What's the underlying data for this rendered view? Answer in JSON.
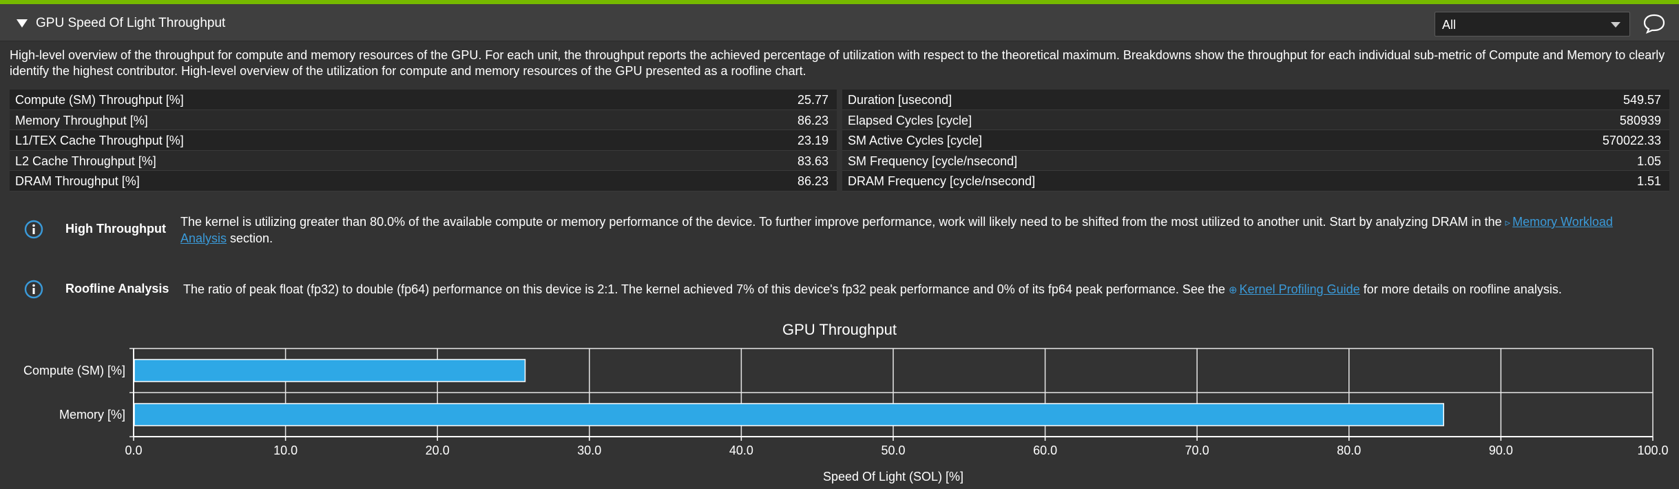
{
  "header": {
    "title": "GPU Speed Of Light Throughput",
    "filter_value": "All",
    "accent_color": "#76b900"
  },
  "description": "High-level overview of the throughput for compute and memory resources of the GPU. For each unit, the throughput reports the achieved percentage of utilization with respect to the theoretical maximum. Breakdowns show the throughput for each individual sub-metric of Compute and Memory to clearly identify the highest contributor. High-level overview of the utilization for compute and memory resources of the GPU presented as a roofline chart.",
  "metrics": {
    "left": [
      {
        "label": "Compute (SM) Throughput [%]",
        "value": "25.77"
      },
      {
        "label": "Memory Throughput [%]",
        "value": "86.23"
      },
      {
        "label": "L1/TEX Cache Throughput [%]",
        "value": "23.19"
      },
      {
        "label": "L2 Cache Throughput [%]",
        "value": "83.63"
      },
      {
        "label": "DRAM Throughput [%]",
        "value": "86.23"
      }
    ],
    "right": [
      {
        "label": "Duration [usecond]",
        "value": "549.57"
      },
      {
        "label": "Elapsed Cycles [cycle]",
        "value": "580939"
      },
      {
        "label": "SM Active Cycles [cycle]",
        "value": "570022.33"
      },
      {
        "label": "SM Frequency [cycle/nsecond]",
        "value": "1.05"
      },
      {
        "label": "DRAM Frequency [cycle/nsecond]",
        "value": "1.51"
      }
    ]
  },
  "info": {
    "high_throughput": {
      "title": "High Throughput",
      "text_before": "The kernel is utilizing greater than 80.0% of the available compute or memory performance of the device. To further improve performance, work will likely need to be shifted from the most utilized to another unit. Start by analyzing DRAM in the ",
      "link_icon": "▹",
      "link_line1": "Memory Workload",
      "link_line2": "Analysis",
      "text_after": " section."
    },
    "roofline": {
      "title": "Roofline Analysis",
      "text_before": "The ratio of peak float (fp32) to double (fp64) performance on this device is 2:1. The kernel achieved 7% of this device's fp32 peak performance and 0% of its fp64 peak performance. See the ",
      "link_icon": "⊕",
      "link": "Kernel Profiling Guide",
      "text_after": " for more details on roofline analysis."
    }
  },
  "chart_data": {
    "type": "bar",
    "orientation": "horizontal",
    "title": "GPU Throughput",
    "xlabel": "Speed Of Light (SOL) [%]",
    "ylabel": "",
    "categories": [
      "Compute (SM) [%]",
      "Memory [%]"
    ],
    "values": [
      25.77,
      86.23
    ],
    "xlim": [
      0,
      100
    ],
    "xticks": [
      "0.0",
      "10.0",
      "20.0",
      "30.0",
      "40.0",
      "50.0",
      "60.0",
      "70.0",
      "80.0",
      "90.0",
      "100.0"
    ],
    "grid": true,
    "bar_color": "#2ea8e6"
  }
}
